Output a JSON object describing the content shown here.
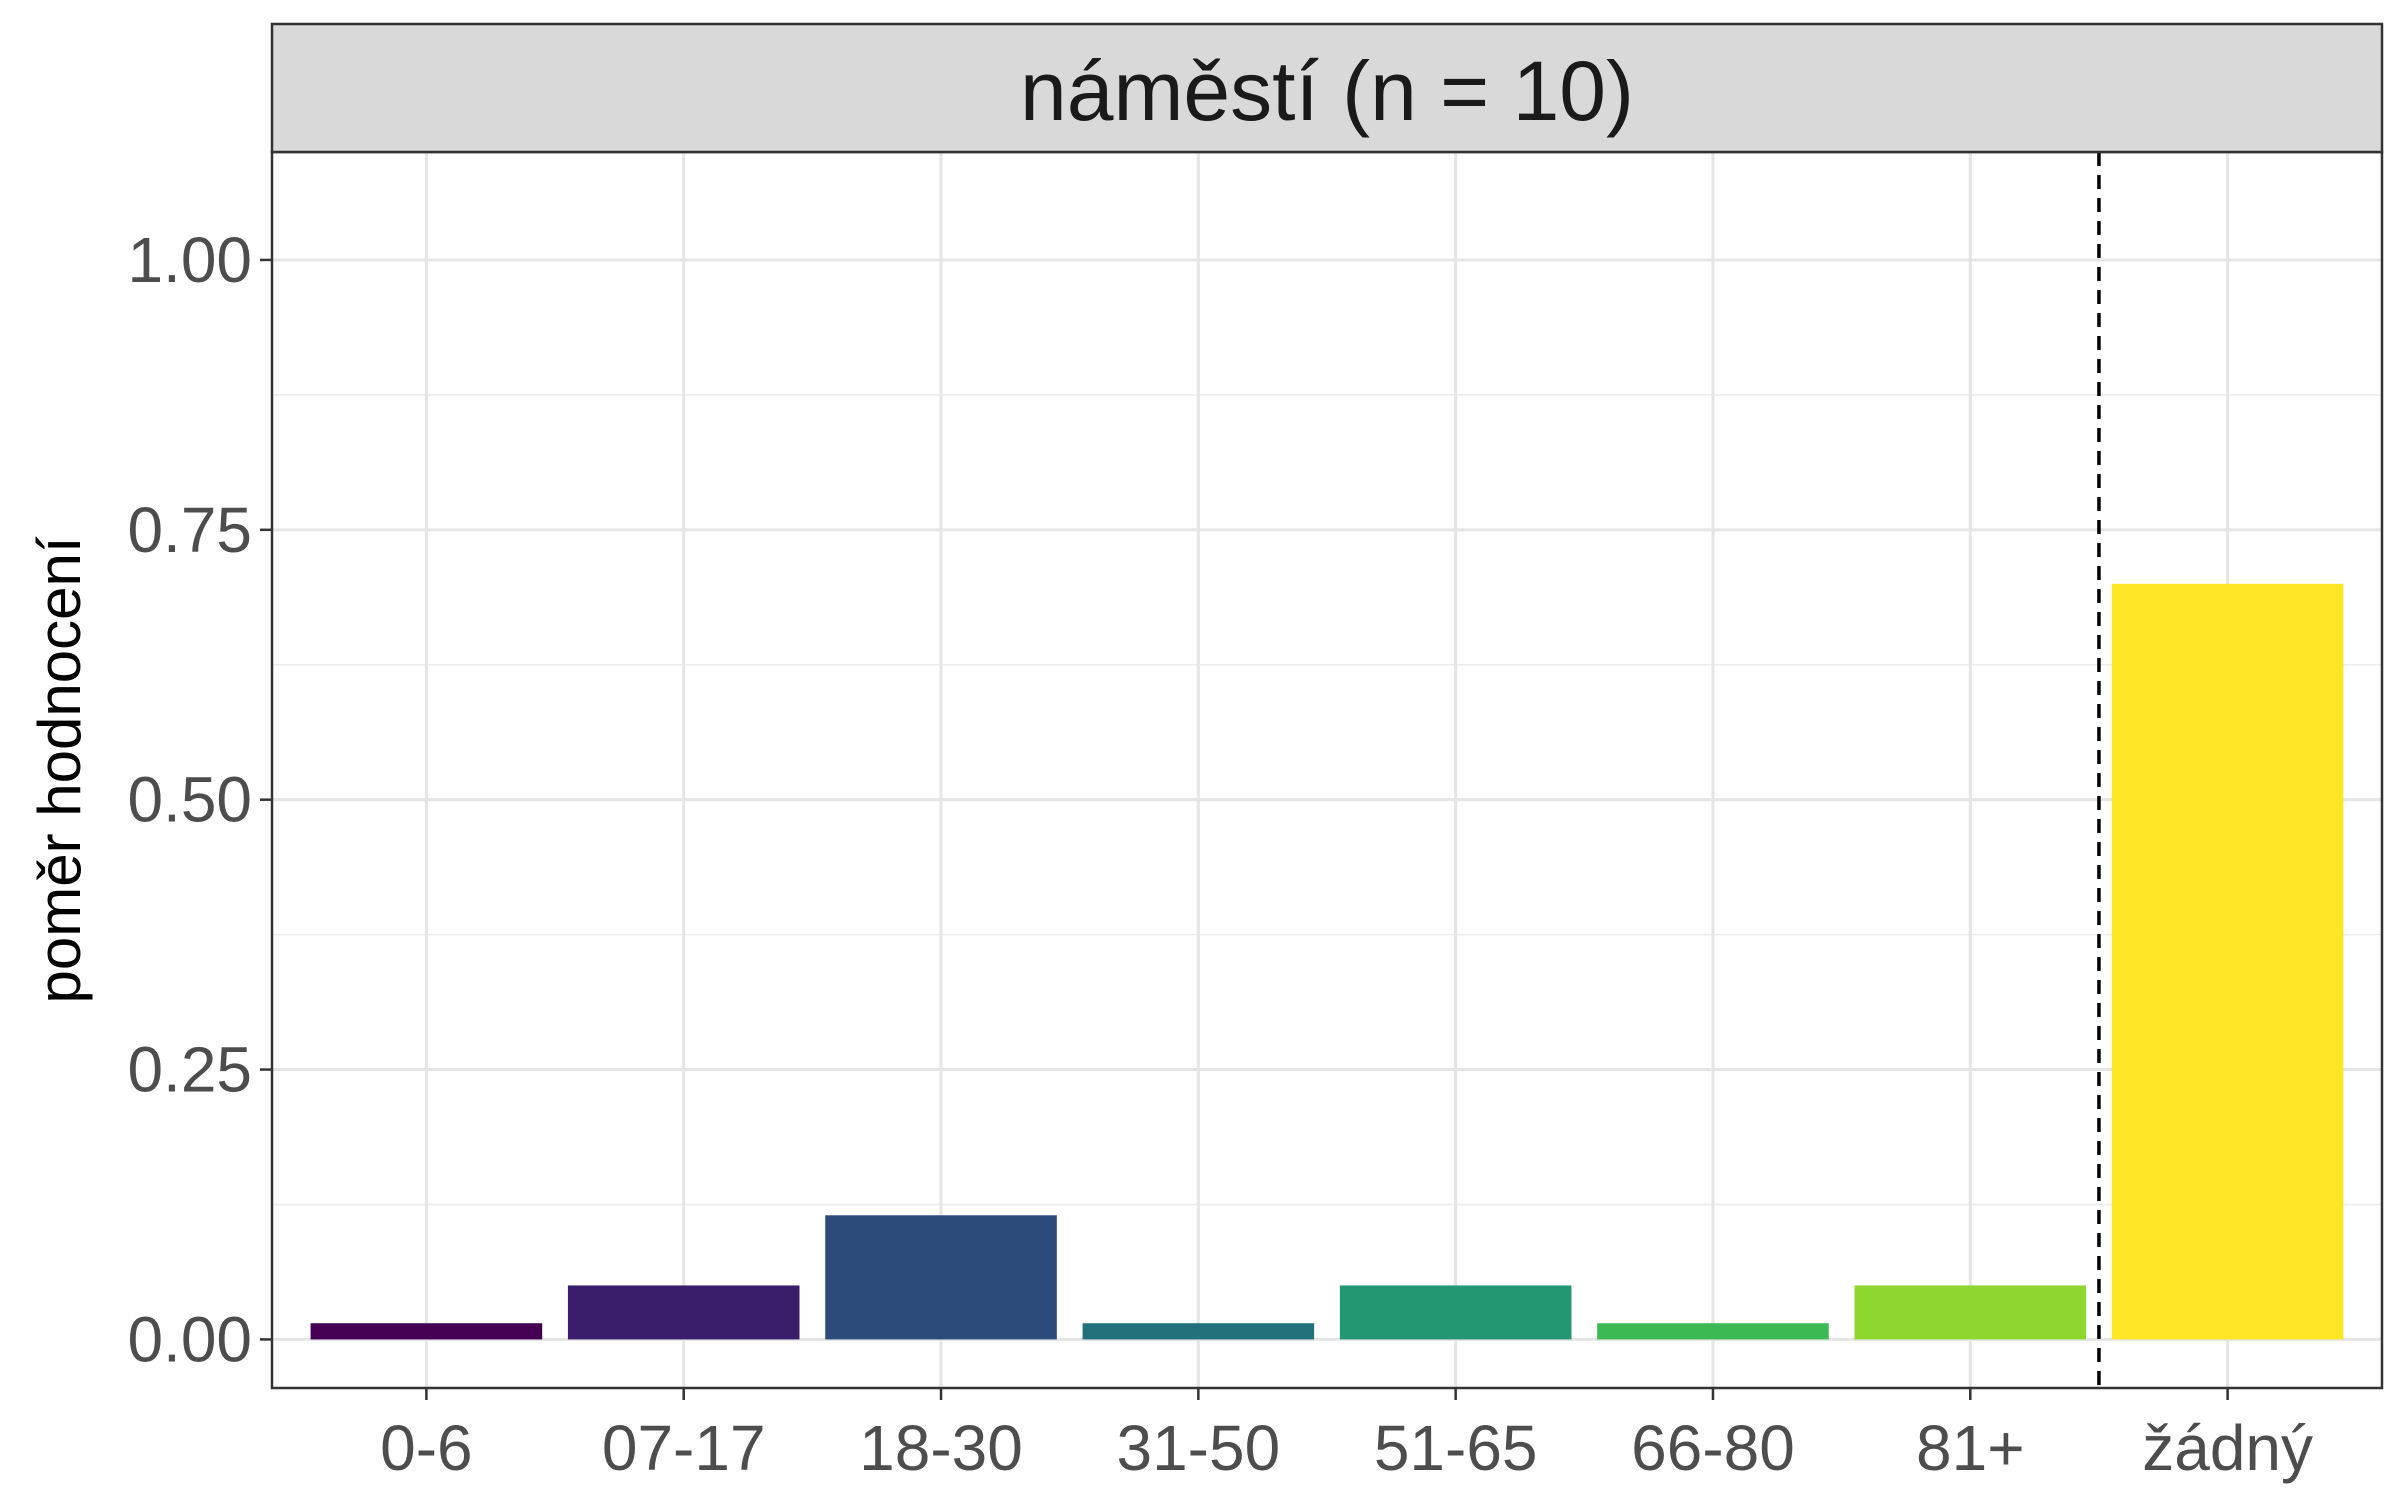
{
  "chart_data": {
    "type": "bar",
    "title": "náměstí (n = 10)",
    "xlabel": "",
    "ylabel": "poměr hodnocení",
    "categories": [
      "0-6",
      "07-17",
      "18-30",
      "31-50",
      "51-65",
      "66-80",
      "81+",
      "žádný"
    ],
    "values": [
      0.015,
      0.05,
      0.115,
      0.015,
      0.05,
      0.015,
      0.05,
      0.7
    ],
    "colors": [
      "#440154",
      "#3B1E6B",
      "#2C4B7A",
      "#21717B",
      "#239674",
      "#3DB954",
      "#8ED72E",
      "#FDE725"
    ],
    "ylim": [
      -0.045,
      1.1
    ],
    "yticks": [
      0.0,
      0.25,
      0.5,
      0.75,
      1.0
    ],
    "ytick_labels": [
      "0.00",
      "0.25",
      "0.50",
      "0.75",
      "1.00"
    ],
    "reference_line": {
      "style": "dashed",
      "between": [
        "81+",
        "žádný"
      ]
    },
    "grid": true,
    "legend": "none"
  }
}
